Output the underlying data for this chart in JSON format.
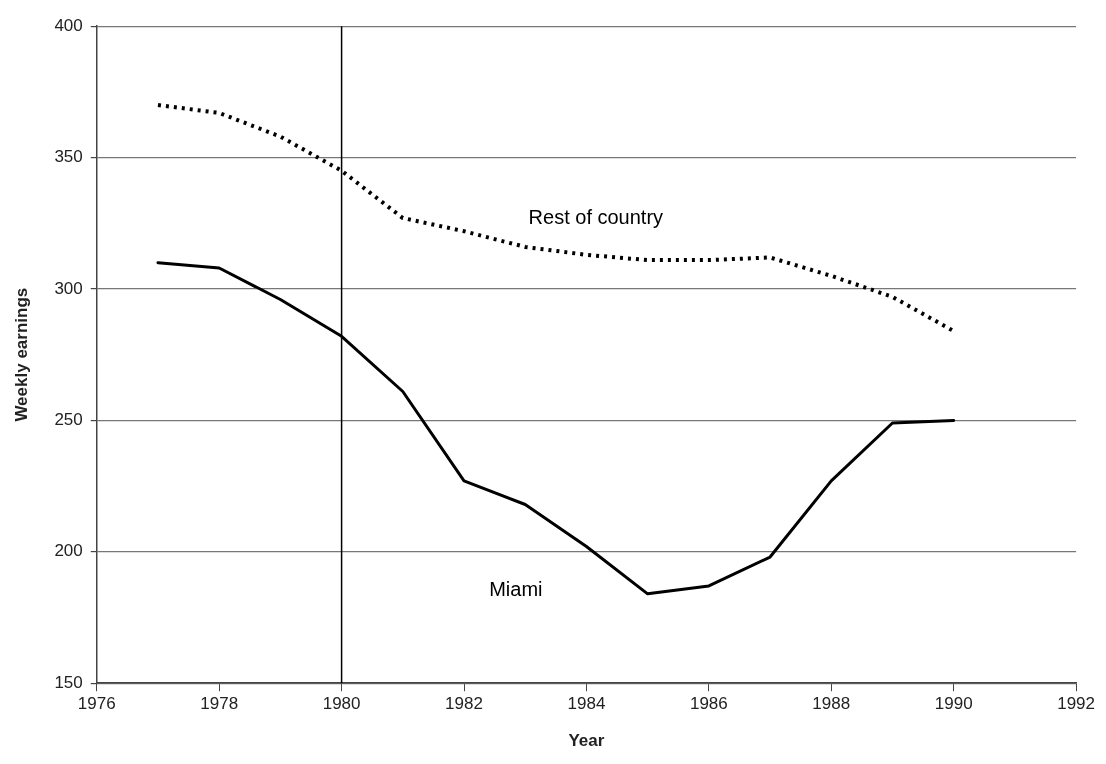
{
  "chart_data": {
    "type": "line",
    "xlabel": "Year",
    "ylabel": "Weekly earnings",
    "x": [
      1977,
      1978,
      1979,
      1980,
      1981,
      1982,
      1983,
      1984,
      1985,
      1986,
      1987,
      1988,
      1989,
      1990
    ],
    "series": [
      {
        "name": "Rest of country",
        "color": "#000000",
        "line_style": "dotted",
        "values": [
          370,
          367,
          358,
          345,
          327,
          322,
          316,
          313,
          311,
          311,
          312,
          305,
          297,
          284
        ]
      },
      {
        "name": "Miami",
        "color": "#000000",
        "line_style": "solid",
        "values": [
          310,
          308,
          296,
          282,
          261,
          227,
          218,
          202,
          184,
          187,
          198,
          227,
          249,
          250
        ]
      }
    ],
    "xlim": [
      1976,
      1992
    ],
    "xticks": [
      1976,
      1978,
      1980,
      1982,
      1984,
      1986,
      1988,
      1990,
      1992
    ],
    "ylim": [
      150,
      400
    ],
    "yticks": [
      150,
      200,
      250,
      300,
      350,
      400
    ],
    "ref_lines": [
      {
        "axis": "x",
        "value": 1980,
        "color": "#000000"
      }
    ],
    "grid": "y",
    "legend": false,
    "marker": "none"
  }
}
